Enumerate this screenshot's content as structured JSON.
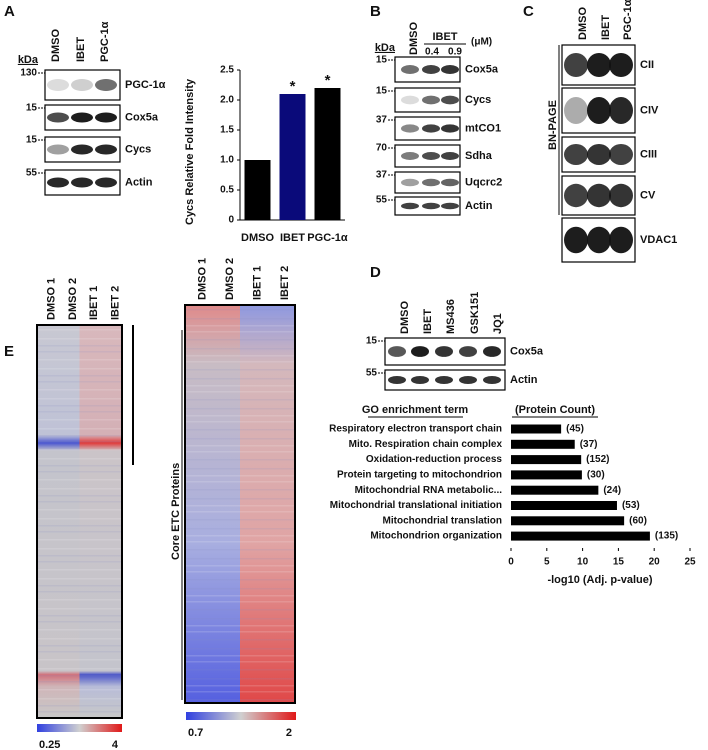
{
  "panels": {
    "A": {
      "letter": "A",
      "kda": "kDa",
      "lanes": [
        "DMSO",
        "IBET",
        "PGC-1α"
      ],
      "markers": [
        "130",
        "15",
        "15",
        "55"
      ],
      "bands": [
        "PGC-1α",
        "Cox5a",
        "Cycs",
        "Actin"
      ]
    },
    "B": {
      "letter": "B",
      "kda": "kDa",
      "lanes": [
        "DMSO"
      ],
      "group": "IBET",
      "doses": [
        "0.4",
        "0.9"
      ],
      "unit": "(μM)",
      "markers": [
        "15",
        "15",
        "37",
        "70",
        "37",
        "55"
      ],
      "bands": [
        "Cox5a",
        "Cycs",
        "mtCO1",
        "Sdha",
        "Uqcrc2",
        "Actin"
      ]
    },
    "C": {
      "letter": "C",
      "lanes": [
        "DMSO",
        "IBET",
        "PGC-1α"
      ],
      "side": "BN-PAGE",
      "bands": [
        "CII",
        "CIV",
        "CIII",
        "CV",
        "VDAC1"
      ]
    },
    "D": {
      "letter": "D",
      "lanes": [
        "DMSO",
        "IBET",
        "MS436",
        "GSK151",
        "JQ1"
      ],
      "markers": [
        "15",
        "55"
      ],
      "bands": [
        "Cox5a",
        "Actin"
      ]
    },
    "E": {
      "letter": "E",
      "heatmaps": [
        {
          "columns": [
            "DMSO 1",
            "DMSO 2",
            "IBET 1",
            "IBET 2"
          ],
          "scale_min": "0.25",
          "scale_max": "4"
        },
        {
          "columns": [
            "DMSO 1",
            "DMSO 2",
            "IBET 1",
            "IBET 2"
          ],
          "label": "Core ETC Proteins",
          "scale_min": "0.7",
          "scale_max": "2"
        }
      ]
    }
  },
  "chart_data": [
    {
      "type": "bar",
      "ylabel": "Cycs Relative Fold Intensity",
      "categories": [
        "DMSO",
        "IBET",
        "PGC-1α"
      ],
      "values": [
        1,
        2.1,
        2.2
      ],
      "colors": [
        "#000000",
        "#0a0a7a",
        "#000000"
      ],
      "annotations": [
        null,
        "*",
        "*"
      ],
      "ylim": [
        0,
        2.5
      ],
      "yticks": [
        0,
        0.5,
        {
          "value": 1,
          "label": "1.0"
        },
        1.5,
        {
          "value": 2,
          "label": "2.0"
        },
        2.5
      ]
    },
    {
      "type": "barh",
      "header_term": "GO enrichment term",
      "header_count": "(Protein Count)",
      "categories": [
        "Respiratory electron transport chain",
        "Mito. Respiration chain complex",
        "Oxidation-reduction process",
        "Protein targeting to mitochondrion",
        "Mitochondrial RNA metabolic...",
        "Mitochondrial translational initiation",
        "Mitochondrial translation",
        "Mitochondrion organization"
      ],
      "values": [
        7,
        8.9,
        9.8,
        9.9,
        12.2,
        14.8,
        15.8,
        19.4
      ],
      "count_labels": [
        "(45)",
        "(37)",
        "(152)",
        "(30)",
        "(24)",
        "(53)",
        "(60)",
        "(135)"
      ],
      "color": "#000000",
      "xlabel": "-log10 (Adj. p-value)",
      "xlim": [
        0,
        25
      ],
      "xticks": [
        0,
        5,
        10,
        15,
        20,
        25
      ]
    }
  ]
}
